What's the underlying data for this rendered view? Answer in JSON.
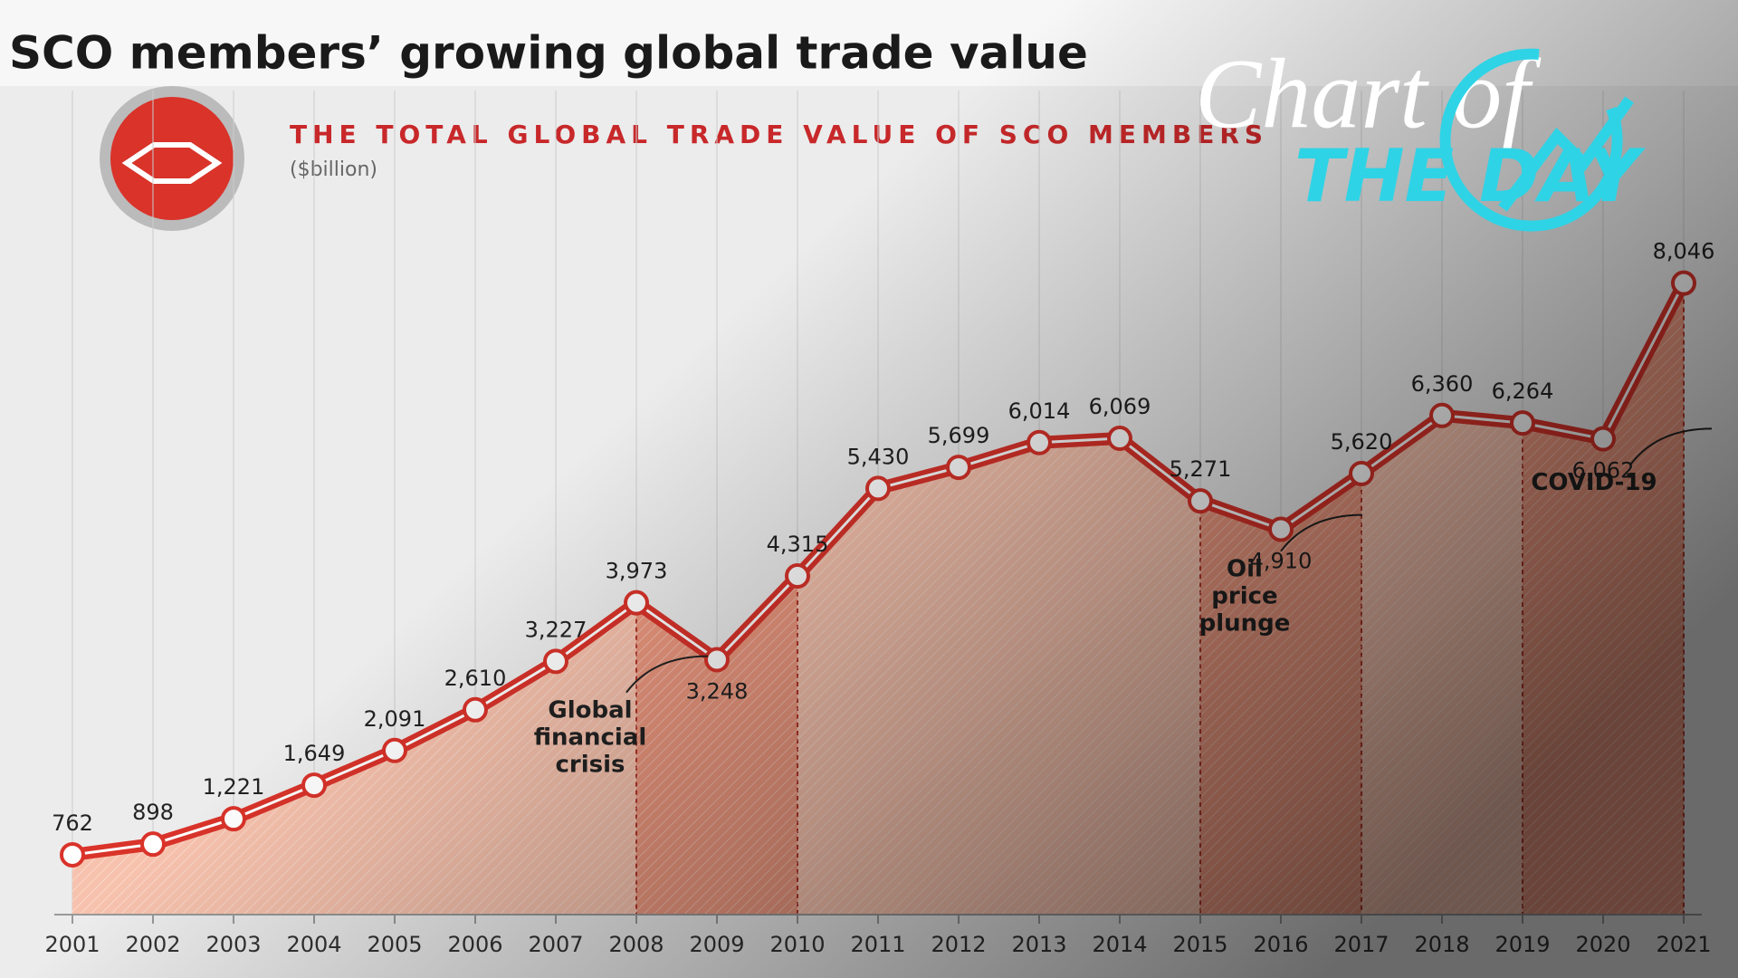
{
  "chart_data": {
    "type": "line",
    "title": "SCO members’ growing global trade value",
    "subtitle": "THE TOTAL GLOBAL TRADE VALUE OF SCO MEMBERS",
    "unit_label": "($billion)",
    "logo": {
      "top": "Chart of",
      "bottom": "THE DAY"
    },
    "categories": [
      "2001",
      "2002",
      "2003",
      "2004",
      "2005",
      "2006",
      "2007",
      "2008",
      "2009",
      "2010",
      "2011",
      "2012",
      "2013",
      "2014",
      "2015",
      "2016",
      "2017",
      "2018",
      "2019",
      "2020",
      "2021"
    ],
    "series": [
      {
        "name": "Total global trade value",
        "color": "#d9332a",
        "values": [
          762,
          898,
          1221,
          1649,
          2091,
          2610,
          3227,
          3973,
          3248,
          4315,
          5430,
          5699,
          6014,
          6069,
          5271,
          4910,
          5620,
          6360,
          6264,
          6062,
          8046
        ],
        "value_labels": [
          "762",
          "898",
          "1,221",
          "1,649",
          "2,091",
          "2,610",
          "3,227",
          "3,973",
          "3,248",
          "4,315",
          "5,430",
          "5,699",
          "6,014",
          "6,069",
          "5,271",
          "4,910",
          "5,620",
          "6,360",
          "6,264",
          "6,062",
          "8,046"
        ]
      }
    ],
    "ylim": [
      0,
      9000
    ],
    "annotations": [
      {
        "text": "Global financial crisis"
      },
      {
        "text": "Oil price plunge"
      },
      {
        "text": "COVID-19"
      }
    ]
  }
}
